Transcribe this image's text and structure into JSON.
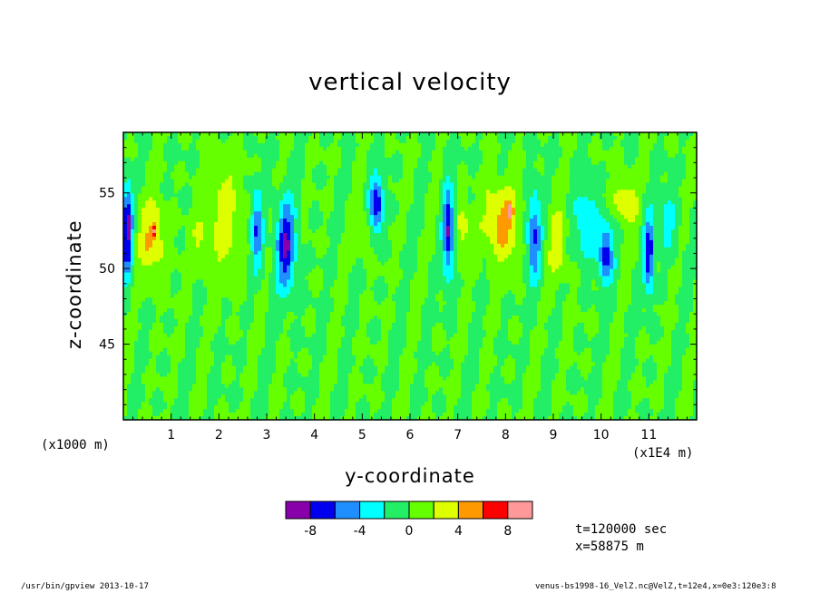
{
  "chart_data": {
    "type": "heatmap",
    "title": "vertical velocity",
    "xlabel": "y-coordinate",
    "ylabel": "z-coordinate",
    "x_unit_left": "(x1000 m)",
    "x_unit_right": "(x1E4 m)",
    "xlim": [
      0,
      12
    ],
    "ylim": [
      40,
      59
    ],
    "x_ticks": [
      1,
      2,
      3,
      4,
      5,
      6,
      7,
      8,
      9,
      10,
      11
    ],
    "x_tick_labels": [
      "1",
      "2",
      "3",
      "4",
      "5",
      "6",
      "7",
      "8",
      "9",
      "10",
      "11"
    ],
    "y_ticks": [
      45,
      50,
      55
    ],
    "y_tick_labels": [
      "45",
      "50",
      "55"
    ],
    "background_level": "0",
    "features": [
      {
        "y": 0.08,
        "z": 52.5,
        "sy": 0.12,
        "sz": 3.0,
        "v": -9
      },
      {
        "y": 0.6,
        "z": 52.0,
        "sy": 0.3,
        "sz": 2.5,
        "v": 4
      },
      {
        "y": 0.65,
        "z": 52.5,
        "sy": 0.05,
        "sz": 0.4,
        "v": 6
      },
      {
        "y": 2.1,
        "z": 53.5,
        "sy": 0.35,
        "sz": 4.0,
        "v": 3
      },
      {
        "y": 1.6,
        "z": 51.5,
        "sy": 0.2,
        "sz": 2.0,
        "v": 2
      },
      {
        "y": 2.8,
        "z": 52.5,
        "sy": 0.12,
        "sz": 2.5,
        "v": -6
      },
      {
        "y": 3.4,
        "z": 51.5,
        "sy": 0.2,
        "sz": 3.0,
        "v": -8
      },
      {
        "y": 5.3,
        "z": 54.0,
        "sy": 0.15,
        "sz": 2.0,
        "v": -8
      },
      {
        "y": 5.1,
        "z": 52.5,
        "sy": 0.3,
        "sz": 1.5,
        "v": 2
      },
      {
        "y": 6.8,
        "z": 52.5,
        "sy": 0.12,
        "sz": 3.0,
        "v": -8
      },
      {
        "y": 7.1,
        "z": 52.5,
        "sy": 0.15,
        "sz": 2.0,
        "v": 3
      },
      {
        "y": 7.9,
        "z": 53.0,
        "sy": 0.35,
        "sz": 2.5,
        "v": 5
      },
      {
        "y": 8.1,
        "z": 53.8,
        "sy": 0.05,
        "sz": 0.5,
        "v": 8
      },
      {
        "y": 8.6,
        "z": 52.0,
        "sy": 0.15,
        "sz": 3.0,
        "v": -6
      },
      {
        "y": 9.1,
        "z": 51.5,
        "sy": 0.2,
        "sz": 2.5,
        "v": 3
      },
      {
        "y": 9.7,
        "z": 53.0,
        "sy": 0.25,
        "sz": 2.5,
        "v": -4
      },
      {
        "y": 10.1,
        "z": 51.0,
        "sy": 0.15,
        "sz": 2.0,
        "v": -7
      },
      {
        "y": 10.5,
        "z": 54.5,
        "sy": 0.25,
        "sz": 1.5,
        "v": 4
      },
      {
        "y": 11.0,
        "z": 51.0,
        "sy": 0.1,
        "sz": 2.5,
        "v": -8
      },
      {
        "y": 11.4,
        "z": 53.0,
        "sy": 0.2,
        "sz": 2.0,
        "v": -3
      }
    ],
    "colorbar": {
      "colors": [
        "#8800aa",
        "#0000ee",
        "#1f8fff",
        "#00ffff",
        "#22ee66",
        "#66ff00",
        "#ddff00",
        "#ff9900",
        "#ff0000",
        "#ff9999"
      ],
      "tick_labels": [
        "-8",
        "-4",
        "0",
        "4",
        "8"
      ],
      "tick_values": [
        -8,
        -4,
        0,
        4,
        8
      ]
    }
  },
  "annotations": {
    "time": "t=120000 sec",
    "position": "x=58875 m"
  },
  "footer": {
    "left": "/usr/bin/gpview  2013-10-17",
    "right": "venus-bs1998-16_VelZ.nc@VelZ,t=12e4,x=0e3:120e3:8"
  }
}
